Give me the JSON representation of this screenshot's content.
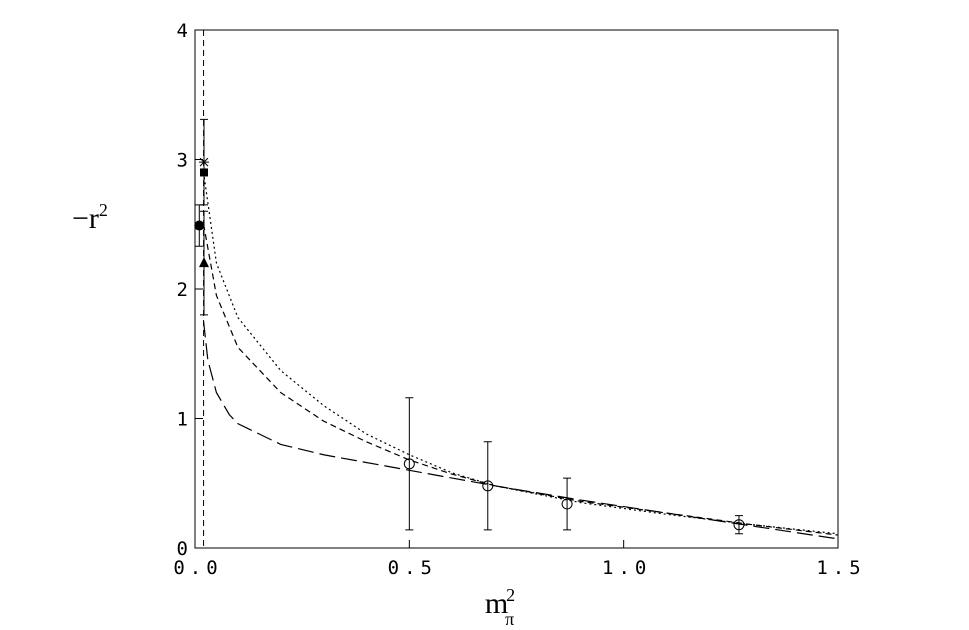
{
  "chart_data": {
    "type": "line",
    "xlabel": {
      "base": "m",
      "sup": "2",
      "sub": "π"
    },
    "ylabel": {
      "base": "−r",
      "sup": "2"
    },
    "xlim": [
      0,
      1.5
    ],
    "ylim": [
      0,
      4
    ],
    "xticks": [
      {
        "value": 0,
        "label": "0.0"
      },
      0.5,
      {
        "value": 1,
        "label": "1.0"
      },
      1.5
    ],
    "yticks": [
      0,
      1,
      2,
      3,
      4
    ],
    "vline": 0.02,
    "series": [
      {
        "style": "dotted",
        "color": "#000",
        "x": [
          0.02,
          0.05,
          0.1,
          0.2,
          0.3,
          0.4,
          0.5,
          0.6,
          0.7,
          0.9,
          1.1,
          1.3,
          1.5
        ],
        "values": [
          2.9,
          2.2,
          1.78,
          1.37,
          1.1,
          0.88,
          0.72,
          0.58,
          0.48,
          0.35,
          0.26,
          0.18,
          0.11
        ]
      },
      {
        "style": "dashed",
        "color": "#000",
        "x": [
          0.02,
          0.05,
          0.1,
          0.2,
          0.3,
          0.4,
          0.5,
          0.6,
          0.7,
          0.9,
          1.1,
          1.3,
          1.5
        ],
        "values": [
          2.5,
          1.95,
          1.55,
          1.2,
          0.98,
          0.82,
          0.68,
          0.57,
          0.48,
          0.36,
          0.27,
          0.18,
          0.1
        ]
      },
      {
        "style": "longdashed",
        "color": "#000",
        "x": [
          0.02,
          0.03,
          0.05,
          0.08,
          0.1,
          0.2,
          0.3,
          0.5,
          0.7,
          0.9,
          1.1,
          1.3,
          1.5
        ],
        "values": [
          1.75,
          1.45,
          1.2,
          1.03,
          0.96,
          0.8,
          0.72,
          0.6,
          0.48,
          0.37,
          0.27,
          0.17,
          0.07
        ]
      }
    ],
    "points": [
      {
        "marker": "circle-open",
        "x": [
          0.5,
          0.683,
          0.868,
          1.269
        ],
        "values": [
          0.65,
          0.48,
          0.34,
          0.18
        ],
        "errors": [
          0.51,
          0.34,
          0.2,
          0.07
        ]
      },
      {
        "marker": "star",
        "x": [
          0.021
        ],
        "values": [
          2.98
        ],
        "errors": [
          0.33
        ]
      },
      {
        "marker": "square",
        "x": [
          0.021
        ],
        "values": [
          2.9
        ],
        "errors": [
          0
        ]
      },
      {
        "marker": "circle-filled",
        "x": [
          0.01
        ],
        "values": [
          2.49
        ],
        "errors": [
          0.16
        ]
      },
      {
        "marker": "triangle",
        "x": [
          0.021
        ],
        "values": [
          2.2
        ],
        "errors": [
          0.4
        ]
      }
    ]
  }
}
